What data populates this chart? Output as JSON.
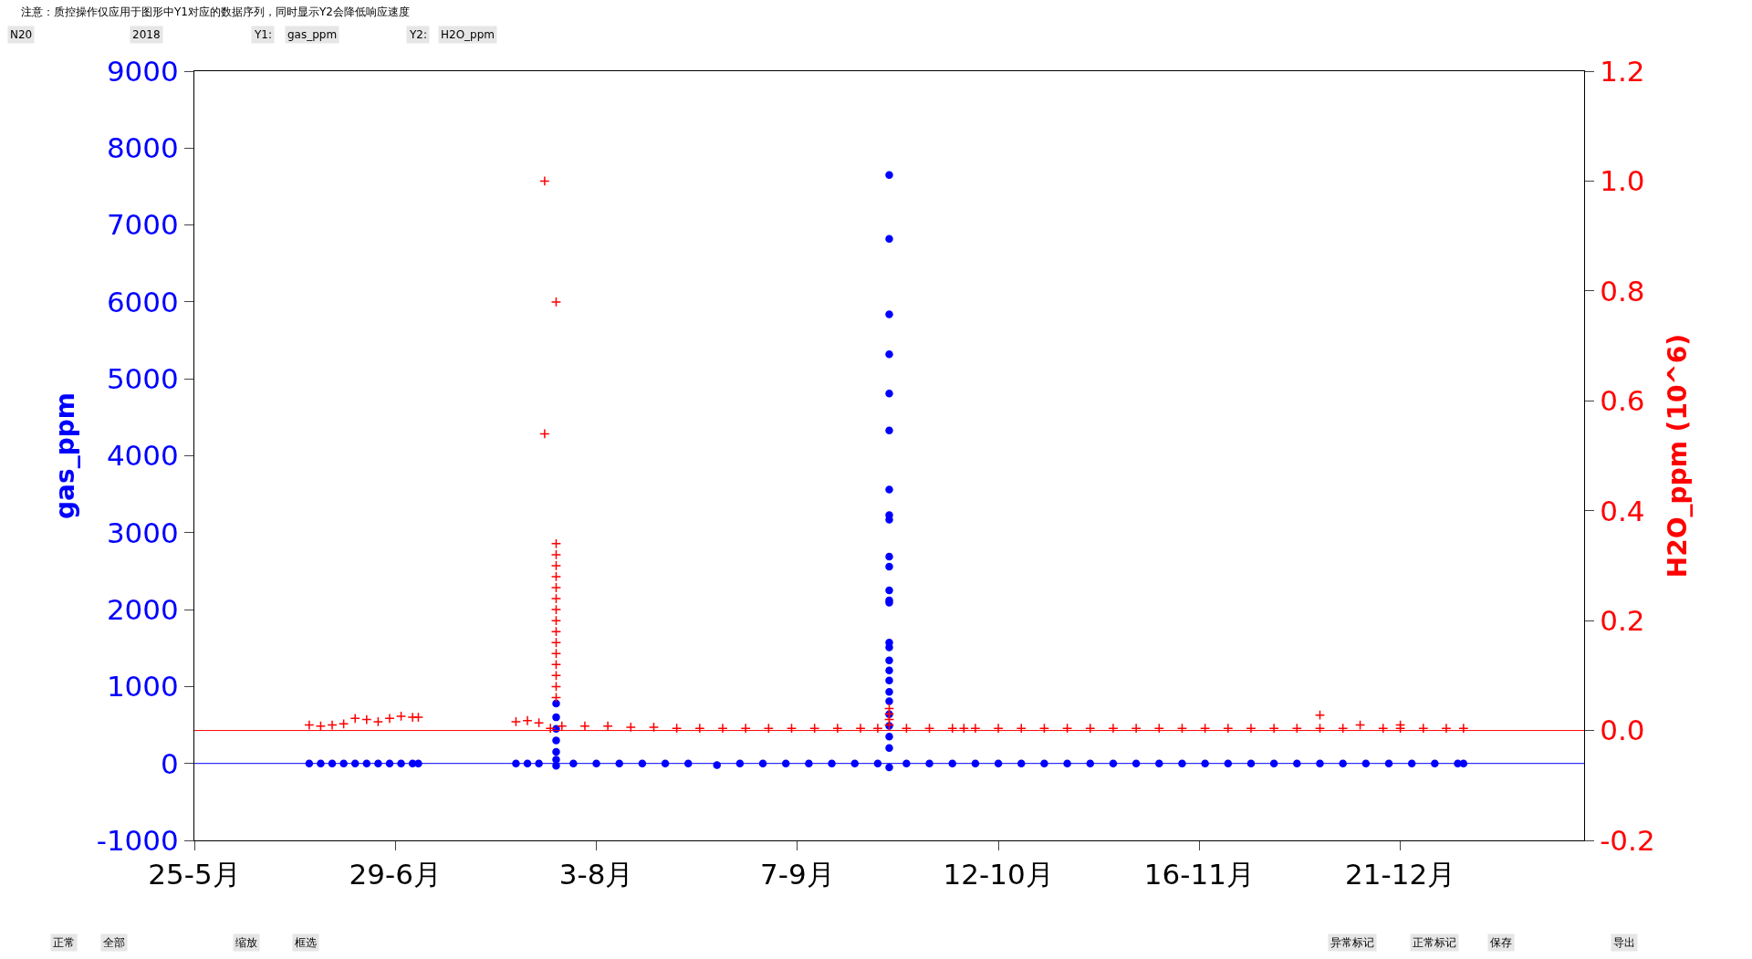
{
  "chart_data": {
    "type": "scatter",
    "title": "注意：质控操作仅应用于图形中Y1对应的数据序列，同时显示Y2会降低响应速度",
    "ylabel": "gas_ppm",
    "y2label": "H2O_ppm (10^6)",
    "annotations": [
      "N20",
      "2018",
      "Y1:",
      "gas_ppm",
      "Y2:",
      "H2O_ppm",
      "正常",
      "全部",
      "缩放",
      "框选",
      "异常标记",
      "正常标记",
      "保存",
      "导出"
    ],
    "xlim": [
      "2018-05-25",
      "2019-01-22"
    ],
    "xticks": [
      {
        "value": "2018-05-25",
        "label": "25-5月"
      },
      {
        "value": "2018-06-29",
        "label": "29-6月"
      },
      {
        "value": "2018-08-03",
        "label": "3-8月"
      },
      {
        "value": "2018-09-07",
        "label": "7-9月"
      },
      {
        "value": "2018-10-12",
        "label": "12-10月"
      },
      {
        "value": "2018-11-16",
        "label": "16-11月"
      },
      {
        "value": "2018-12-21",
        "label": "21-12月"
      }
    ],
    "ylim": [
      -1000,
      9000
    ],
    "yticks": [
      -1000,
      0,
      1000,
      2000,
      3000,
      4000,
      5000,
      6000,
      7000,
      8000,
      9000
    ],
    "y2lim": [
      -0.2,
      1.2
    ],
    "y2ticks": [
      {
        "value": -0.2,
        "label": "-0.2"
      },
      {
        "value": 0,
        "label": "0.0"
      },
      {
        "value": 0.2,
        "label": "0.2"
      },
      {
        "value": 0.4,
        "label": "0.4"
      },
      {
        "value": 0.6,
        "label": "0.6"
      },
      {
        "value": 0.8,
        "label": "0.8"
      },
      {
        "value": 1.0,
        "label": "1.0"
      },
      {
        "value": 1.2,
        "label": "1.2"
      }
    ],
    "ref_lines": [
      {
        "axis": "y",
        "value": 0,
        "color": "#0000ff"
      },
      {
        "axis": "y2",
        "value": 0,
        "color": "#ff0000"
      }
    ],
    "series": [
      {
        "color": "#0000ff",
        "marker": "circle",
        "axis": "y",
        "x": [
          "2018-06-14",
          "2018-06-16",
          "2018-06-18",
          "2018-06-20",
          "2018-06-22",
          "2018-06-24",
          "2018-06-26",
          "2018-06-28",
          "2018-06-30",
          "2018-07-02",
          "2018-07-03",
          "2018-07-20",
          "2018-07-22",
          "2018-07-24",
          "2018-07-27",
          "2018-07-27",
          "2018-07-27",
          "2018-07-27",
          "2018-07-27",
          "2018-07-27",
          "2018-07-27",
          "2018-07-30",
          "2018-08-03",
          "2018-08-07",
          "2018-08-11",
          "2018-08-15",
          "2018-08-19",
          "2018-08-24",
          "2018-08-28",
          "2018-09-01",
          "2018-09-05",
          "2018-09-09",
          "2018-09-13",
          "2018-09-17",
          "2018-09-21",
          "2018-09-23",
          "2018-09-23",
          "2018-09-23",
          "2018-09-23",
          "2018-09-23",
          "2018-09-23",
          "2018-09-23",
          "2018-09-23",
          "2018-09-23",
          "2018-09-23",
          "2018-09-23",
          "2018-09-23",
          "2018-09-23",
          "2018-09-23",
          "2018-09-23",
          "2018-09-23",
          "2018-09-23",
          "2018-09-23",
          "2018-09-23",
          "2018-09-23",
          "2018-09-23",
          "2018-09-23",
          "2018-09-23",
          "2018-09-23",
          "2018-09-23",
          "2018-09-23",
          "2018-09-26",
          "2018-09-30",
          "2018-10-04",
          "2018-10-08",
          "2018-10-12",
          "2018-10-16",
          "2018-10-20",
          "2018-10-24",
          "2018-10-28",
          "2018-11-01",
          "2018-11-05",
          "2018-11-09",
          "2018-11-13",
          "2018-11-17",
          "2018-11-21",
          "2018-11-25",
          "2018-11-29",
          "2018-12-03",
          "2018-12-07",
          "2018-12-11",
          "2018-12-15",
          "2018-12-19",
          "2018-12-23",
          "2018-12-27",
          "2018-12-31",
          "2019-01-01"
        ],
        "values": [
          0,
          0,
          0,
          0,
          0,
          0,
          0,
          0,
          0,
          0,
          0,
          0,
          0,
          0,
          780,
          600,
          450,
          300,
          150,
          50,
          -30,
          0,
          0,
          0,
          0,
          0,
          0,
          -20,
          0,
          0,
          0,
          0,
          0,
          0,
          0,
          7650,
          6820,
          5840,
          5320,
          4810,
          4330,
          3560,
          3230,
          3170,
          2690,
          2560,
          2250,
          2120,
          2090,
          1570,
          1510,
          1340,
          1210,
          1080,
          930,
          810,
          640,
          490,
          350,
          200,
          -50,
          0,
          0,
          0,
          0,
          0,
          0,
          0,
          0,
          0,
          0,
          0,
          0,
          0,
          0,
          0,
          0,
          0,
          0,
          0,
          0,
          0,
          0,
          0,
          0,
          0,
          0
        ]
      },
      {
        "color": "#ff0000",
        "marker": "cross",
        "axis": "y2",
        "x": [
          "2018-06-14",
          "2018-06-16",
          "2018-06-18",
          "2018-06-20",
          "2018-06-22",
          "2018-06-24",
          "2018-06-26",
          "2018-06-28",
          "2018-06-30",
          "2018-07-02",
          "2018-07-03",
          "2018-07-20",
          "2018-07-22",
          "2018-07-24",
          "2018-07-25",
          "2018-07-25",
          "2018-07-26",
          "2018-07-27",
          "2018-07-27",
          "2018-07-27",
          "2018-07-27",
          "2018-07-27",
          "2018-07-27",
          "2018-07-27",
          "2018-07-27",
          "2018-07-27",
          "2018-07-27",
          "2018-07-27",
          "2018-07-27",
          "2018-07-27",
          "2018-07-27",
          "2018-07-27",
          "2018-07-27",
          "2018-07-28",
          "2018-08-01",
          "2018-08-05",
          "2018-08-09",
          "2018-08-13",
          "2018-08-17",
          "2018-08-21",
          "2018-08-25",
          "2018-08-29",
          "2018-09-02",
          "2018-09-06",
          "2018-09-10",
          "2018-09-14",
          "2018-09-18",
          "2018-09-21",
          "2018-09-23",
          "2018-09-23",
          "2018-09-23",
          "2018-09-23",
          "2018-09-26",
          "2018-09-30",
          "2018-10-04",
          "2018-10-06",
          "2018-10-08",
          "2018-10-12",
          "2018-10-16",
          "2018-10-20",
          "2018-10-24",
          "2018-10-28",
          "2018-11-01",
          "2018-11-05",
          "2018-11-09",
          "2018-11-13",
          "2018-11-17",
          "2018-11-21",
          "2018-11-25",
          "2018-11-29",
          "2018-12-03",
          "2018-12-07",
          "2018-12-07",
          "2018-12-11",
          "2018-12-14",
          "2018-12-18",
          "2018-12-21",
          "2018-12-21",
          "2018-12-25",
          "2018-12-29",
          "2019-01-01"
        ],
        "values": [
          0.01,
          0.008,
          0.01,
          0.012,
          0.022,
          0.02,
          0.016,
          0.022,
          0.026,
          0.024,
          0.024,
          0.016,
          0.018,
          0.014,
          1.0,
          0.54,
          0.004,
          0.78,
          0.34,
          0.32,
          0.3,
          0.28,
          0.26,
          0.24,
          0.22,
          0.2,
          0.18,
          0.16,
          0.14,
          0.12,
          0.1,
          0.08,
          0.06,
          0.008,
          0.008,
          0.008,
          0.006,
          0.006,
          0.004,
          0.004,
          0.004,
          0.004,
          0.004,
          0.004,
          0.004,
          0.004,
          0.004,
          0.004,
          0.04,
          0.03,
          0.02,
          0.01,
          0.004,
          0.004,
          0.004,
          0.004,
          0.004,
          0.004,
          0.004,
          0.004,
          0.004,
          0.004,
          0.004,
          0.004,
          0.004,
          0.004,
          0.004,
          0.004,
          0.004,
          0.004,
          0.004,
          0.004,
          0.028,
          0.004,
          0.01,
          0.004,
          0.01,
          0.004,
          0.004,
          0.004,
          0.004
        ]
      }
    ]
  }
}
